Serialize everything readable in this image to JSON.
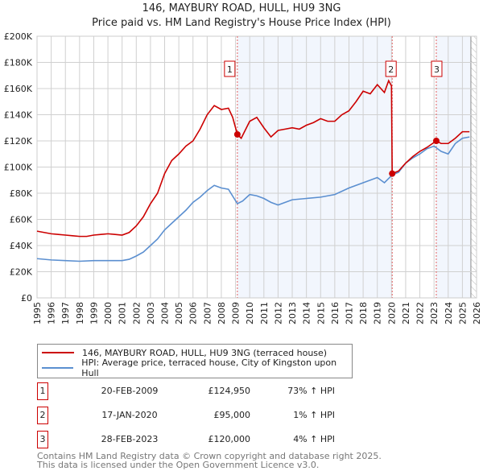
{
  "chart_data": {
    "type": "line",
    "title": "146, MAYBURY ROAD, HULL, HU9 3NG",
    "subtitle": "Price paid vs. HM Land Registry's House Price Index (HPI)",
    "xlim": [
      1995,
      2026
    ],
    "ylim": [
      0,
      200000
    ],
    "yticks": [
      {
        "v": 0,
        "label": "£0"
      },
      {
        "v": 20000,
        "label": "£20K"
      },
      {
        "v": 40000,
        "label": "£40K"
      },
      {
        "v": 60000,
        "label": "£60K"
      },
      {
        "v": 80000,
        "label": "£80K"
      },
      {
        "v": 100000,
        "label": "£100K"
      },
      {
        "v": 120000,
        "label": "£120K"
      },
      {
        "v": 140000,
        "label": "£140K"
      },
      {
        "v": 160000,
        "label": "£160K"
      },
      {
        "v": 180000,
        "label": "£180K"
      },
      {
        "v": 200000,
        "label": "£200K"
      }
    ],
    "xticks": [
      "1995",
      "1996",
      "1997",
      "1998",
      "1999",
      "2000",
      "2001",
      "2002",
      "2003",
      "2004",
      "2005",
      "2006",
      "2007",
      "2008",
      "2009",
      "2010",
      "2011",
      "2012",
      "2013",
      "2014",
      "2015",
      "2016",
      "2017",
      "2018",
      "2019",
      "2020",
      "2021",
      "2022",
      "2023",
      "2024",
      "2025",
      "2026"
    ],
    "grid": true,
    "forecast_hatch_from": 2025.6,
    "series": [
      {
        "name": "146, MAYBURY ROAD, HULL, HU9 3NG (terraced house)",
        "color": "#cc0000",
        "x": [
          1995,
          1995.5,
          1996,
          1996.5,
          1997,
          1997.5,
          1998,
          1998.5,
          1999,
          1999.5,
          2000,
          2000.5,
          2001,
          2001.5,
          2002,
          2002.5,
          2003,
          2003.5,
          2004,
          2004.5,
          2005,
          2005.5,
          2006,
          2006.5,
          2007,
          2007.5,
          2008,
          2008.5,
          2008.8,
          2009.13,
          2009.4,
          2010,
          2010.5,
          2011,
          2011.5,
          2012,
          2012.5,
          2013,
          2013.5,
          2014,
          2014.5,
          2015,
          2015.5,
          2016,
          2016.5,
          2017,
          2017.5,
          2018,
          2018.5,
          2019,
          2019.5,
          2019.8,
          2020.0,
          2020.05,
          2020.5,
          2021,
          2021.5,
          2022,
          2022.5,
          2023.16,
          2023.5,
          2024,
          2024.5,
          2025,
          2025.5
        ],
        "y": [
          51000,
          50000,
          49000,
          48500,
          48000,
          47500,
          47000,
          47000,
          48000,
          48500,
          49000,
          48500,
          48000,
          50000,
          55000,
          62000,
          72000,
          80000,
          95000,
          105000,
          110000,
          116000,
          120000,
          129000,
          140000,
          147000,
          144000,
          145000,
          138000,
          124950,
          122000,
          135000,
          138000,
          130000,
          123000,
          128000,
          129000,
          130000,
          129000,
          132000,
          134000,
          137000,
          135000,
          135000,
          140000,
          143000,
          150000,
          158000,
          156000,
          163000,
          157000,
          166000,
          162000,
          95000,
          97000,
          103000,
          108000,
          112000,
          115000,
          120000,
          118000,
          118000,
          122000,
          127000,
          127000
        ]
      },
      {
        "name": "HPI: Average price, terraced house, City of Kingston upon Hull",
        "color": "#5b8fd0",
        "x": [
          1995,
          1996,
          1997,
          1998,
          1999,
          2000,
          2001,
          2001.5,
          2002,
          2002.5,
          2003,
          2003.5,
          2004,
          2004.5,
          2005,
          2005.5,
          2006,
          2006.5,
          2007,
          2007.5,
          2008,
          2008.5,
          2009.13,
          2009.5,
          2010,
          2010.5,
          2011,
          2011.5,
          2012,
          2012.5,
          2013,
          2014,
          2015,
          2016,
          2017,
          2018,
          2019,
          2019.5,
          2020.05,
          2020.5,
          2021,
          2021.5,
          2022,
          2022.5,
          2023,
          2023.5,
          2024,
          2024.5,
          2025,
          2025.5
        ],
        "y": [
          30000,
          29000,
          28500,
          28000,
          28500,
          28500,
          28500,
          29500,
          32000,
          35000,
          40000,
          45000,
          52000,
          57000,
          62000,
          67000,
          73000,
          77000,
          82000,
          86000,
          84000,
          83000,
          72000,
          74000,
          79000,
          78000,
          76000,
          73000,
          71000,
          73000,
          75000,
          76000,
          77000,
          79000,
          84000,
          88000,
          92000,
          88000,
          94000,
          96000,
          103000,
          107000,
          110000,
          114000,
          116000,
          112000,
          110000,
          118000,
          122000,
          123000
        ]
      }
    ],
    "sales": [
      {
        "n": "1",
        "x": 2009.13,
        "y": 124950,
        "date": "20-FEB-2009",
        "price": "£124,950",
        "hpi": "73% ↑ HPI"
      },
      {
        "n": "2",
        "x": 2020.05,
        "y": 95000,
        "date": "17-JAN-2020",
        "price": "£95,000",
        "hpi": "1% ↑ HPI"
      },
      {
        "n": "3",
        "x": 2023.16,
        "y": 120000,
        "date": "28-FEB-2023",
        "price": "£120,000",
        "hpi": "4% ↑ HPI"
      }
    ],
    "legend": [
      "146, MAYBURY ROAD, HULL, HU9 3NG (terraced house)",
      "HPI: Average price, terraced house, City of Kingston upon Hull"
    ],
    "legend_placement": "below"
  },
  "footer": [
    "Contains HM Land Registry data © Crown copyright and database right 2025.",
    "This data is licensed under the Open Government Licence v3.0."
  ]
}
